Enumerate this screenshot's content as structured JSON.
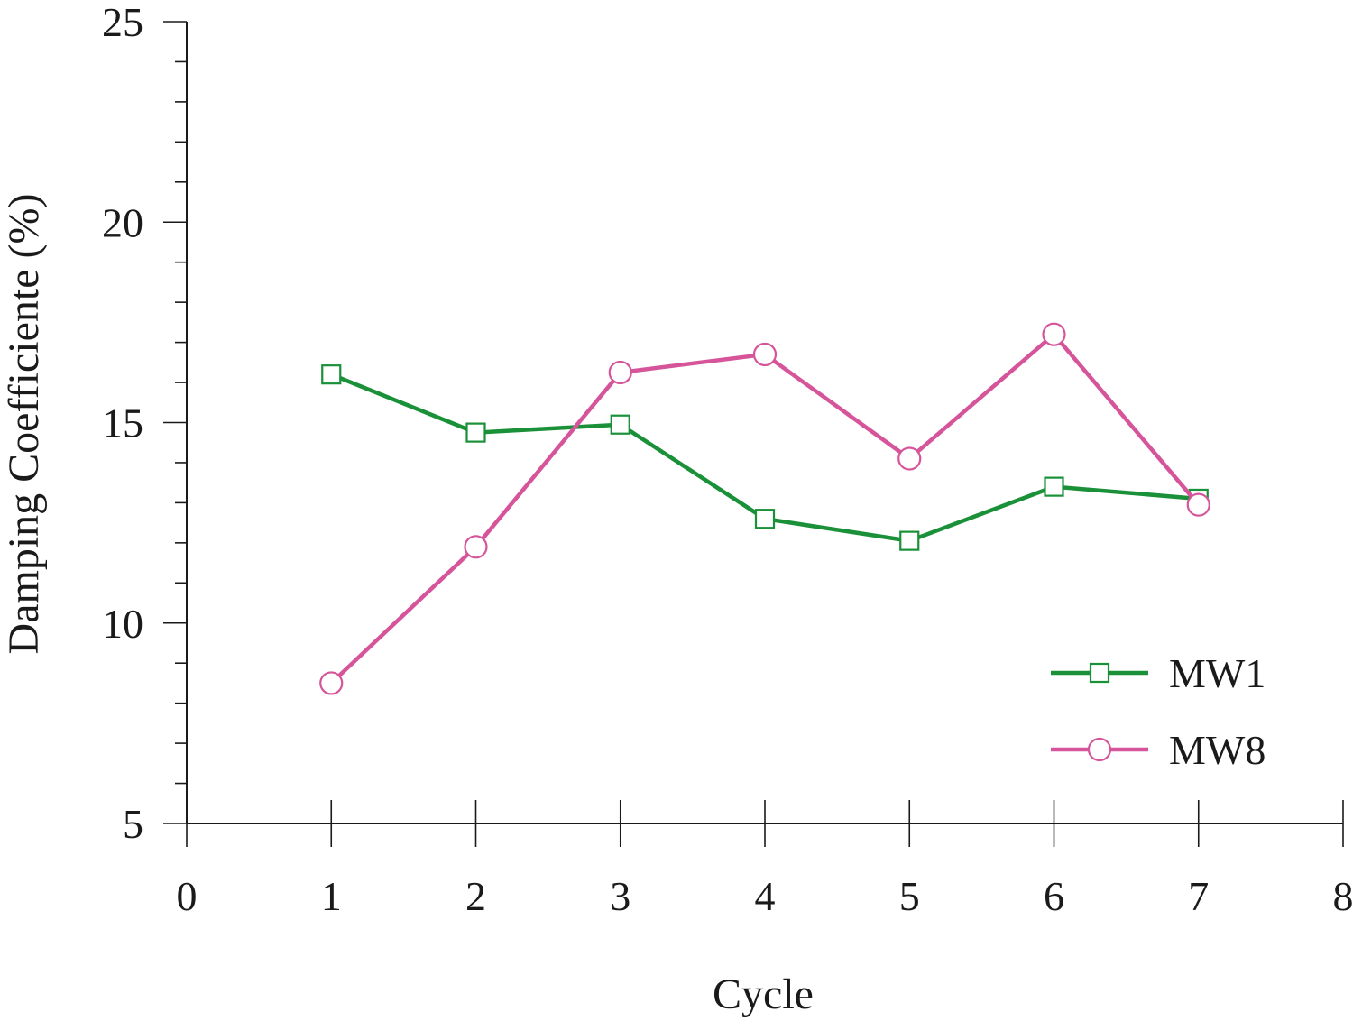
{
  "chart_data": {
    "type": "line",
    "title": "",
    "xlabel": "Cycle",
    "ylabel": "Damping Coefficiente (%)",
    "xlim": [
      0,
      8
    ],
    "ylim": [
      5,
      25
    ],
    "x_ticks": [
      "0",
      "1",
      "2",
      "3",
      "4",
      "5",
      "6",
      "7",
      "8"
    ],
    "y_ticks": [
      "5",
      "10",
      "15",
      "20",
      "25"
    ],
    "grid": false,
    "legend_position": "bottom-right",
    "x": [
      1,
      2,
      3,
      4,
      5,
      6,
      7
    ],
    "series": [
      {
        "name": "MW1",
        "marker": "square",
        "color": "#1a9138",
        "values": [
          16.2,
          14.75,
          14.95,
          12.6,
          12.05,
          13.4,
          13.1
        ]
      },
      {
        "name": "MW8",
        "marker": "circle",
        "color": "#d6559a",
        "values": [
          8.5,
          11.9,
          16.25,
          16.7,
          14.1,
          17.2,
          12.95
        ]
      }
    ]
  }
}
